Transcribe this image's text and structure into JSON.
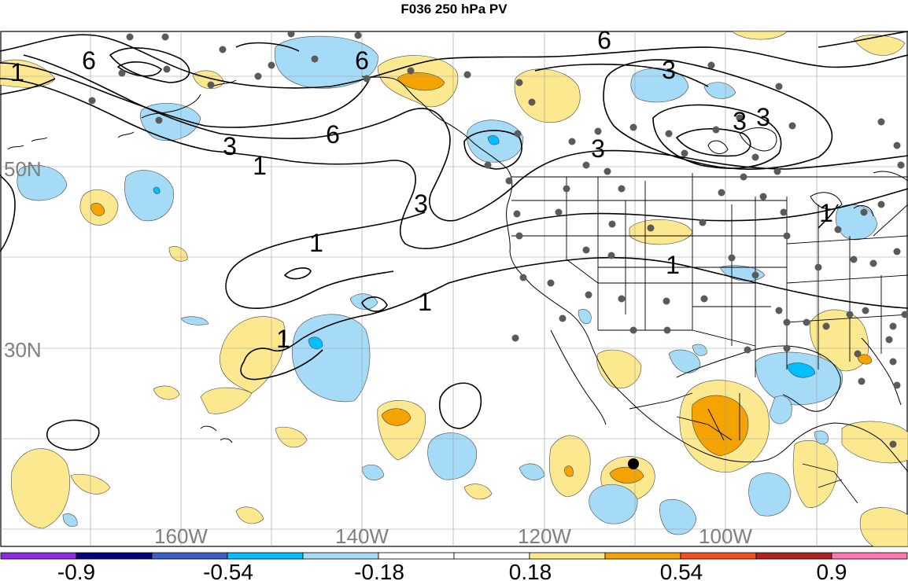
{
  "title": "F036 250 hPa PV",
  "map": {
    "lon_labels": [
      "160W",
      "140W",
      "120W",
      "100W"
    ],
    "lat_labels": [
      "50N",
      "30N"
    ],
    "contour_labels": [
      "1",
      "6",
      "6",
      "3",
      "1",
      "6",
      "3",
      "3",
      "3",
      "3",
      "6",
      "3",
      "1",
      "1",
      "1",
      "1",
      "1"
    ],
    "label_color": "#808080"
  },
  "colorbar": {
    "tick_labels": [
      "-0.9",
      "-0.54",
      "-0.18",
      "0.18",
      "0.54",
      "0.9"
    ],
    "colors": [
      "#8a2be2",
      "#000080",
      "#3d5fc8",
      "#00bfff",
      "#a6dbf7",
      "#ffffff",
      "#ffffff",
      "#fce98f",
      "#f5a300",
      "#f24e1e",
      "#b22222",
      "#ff78b4"
    ]
  }
}
